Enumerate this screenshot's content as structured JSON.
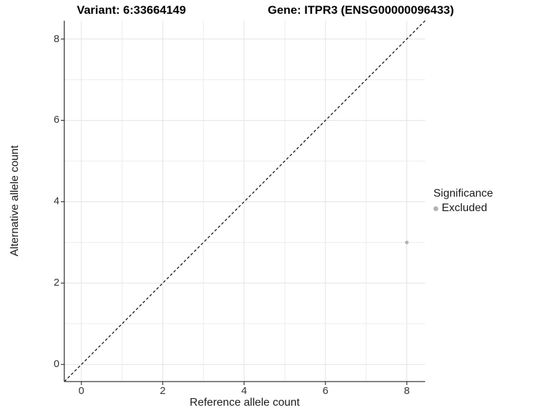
{
  "titles": {
    "variant": "Variant: 6:33664149",
    "gene": "Gene: ITPR3 (ENSG00000096433)"
  },
  "chart_data": {
    "type": "scatter",
    "title": "",
    "xlabel": "Reference allele count",
    "ylabel": "Alternative allele count",
    "xlim": [
      -0.42,
      8.45
    ],
    "ylim": [
      -0.42,
      8.45
    ],
    "x_ticks": [
      0,
      2,
      4,
      6,
      8
    ],
    "y_ticks": [
      0,
      2,
      4,
      6,
      8
    ],
    "x_minor_ticks": [
      1,
      3,
      5,
      7
    ],
    "y_minor_ticks": [
      1,
      3,
      5,
      7
    ],
    "grid": "on",
    "points": [
      {
        "x": 8,
        "y": 3,
        "series": "Excluded"
      }
    ],
    "reference_line": {
      "slope": 1,
      "intercept": 0,
      "linetype": "dashed",
      "color": "#000000"
    },
    "legend": {
      "title": "Significance",
      "position": "right",
      "items": [
        {
          "label": "Excluded",
          "color": "#b3b3b3"
        }
      ]
    }
  },
  "colors": {
    "background": "#ffffff",
    "grid_major": "#e3e3e3",
    "grid_minor": "#ededed",
    "axis_line": "#333333",
    "tick_mark": "#333333",
    "tick_label": "#333333",
    "point": "#b3b3b3"
  }
}
